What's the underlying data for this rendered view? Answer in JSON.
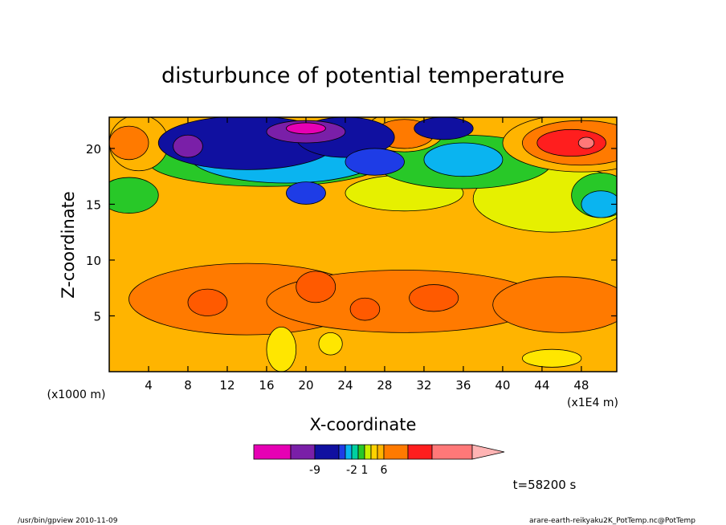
{
  "chart_data": {
    "type": "heatmap",
    "title": "disturbunce of potential temperature",
    "xlabel": "X-coordinate",
    "ylabel": "Z-coordinate",
    "x_unit_label": "(x1E4 m)",
    "y_unit_label": "(x1000 m)",
    "xlim": [
      0,
      51.6
    ],
    "ylim": [
      0,
      22.8
    ],
    "x_ticks": [
      4,
      8,
      12,
      16,
      20,
      24,
      28,
      32,
      36,
      40,
      44,
      48
    ],
    "y_ticks": [
      5,
      10,
      15,
      20
    ],
    "time_label": "t=58200 s",
    "colorbar": {
      "colors": [
        "#e600b4",
        "#7a1fa8",
        "#1010a0",
        "#1e3ce6",
        "#0ab4f0",
        "#00d0a0",
        "#28c828",
        "#c8f000",
        "#ffd200",
        "#ffb400",
        "#ff7a00",
        "#ff1e1e",
        "#ff7878",
        "#ffb4b4"
      ],
      "labels": [
        {
          "value": -9,
          "text": "-9"
        },
        {
          "value": -2,
          "text": "-2"
        },
        {
          "value": 1,
          "text": "1"
        },
        {
          "value": 6,
          "text": "6"
        }
      ]
    },
    "regions": [
      {
        "level": 1,
        "color": "#ff7a00",
        "cx": 14,
        "cy": 6.5,
        "rx": 12,
        "ry": 3.2
      },
      {
        "level": 1,
        "color": "#ff7a00",
        "cx": 30,
        "cy": 6.3,
        "rx": 14,
        "ry": 2.8
      },
      {
        "level": 1,
        "color": "#ff7a00",
        "cx": 46,
        "cy": 6,
        "rx": 7,
        "ry": 2.5
      },
      {
        "level": 2,
        "color": "#ff5a00",
        "cx": 10,
        "cy": 6.2,
        "rx": 2,
        "ry": 1.2
      },
      {
        "level": 2,
        "color": "#ff5a00",
        "cx": 21,
        "cy": 7.6,
        "rx": 2,
        "ry": 1.4
      },
      {
        "level": 2,
        "color": "#ff5a00",
        "cx": 26,
        "cy": 5.6,
        "rx": 1.5,
        "ry": 1
      },
      {
        "level": 2,
        "color": "#ff5a00",
        "cx": 33,
        "cy": 6.6,
        "rx": 2.5,
        "ry": 1.2
      },
      {
        "level": 0,
        "color": "#ffe600",
        "cx": 17.5,
        "cy": 2,
        "rx": 1.5,
        "ry": 2
      },
      {
        "level": 0,
        "color": "#ffe600",
        "cx": 22.5,
        "cy": 2.5,
        "rx": 1.2,
        "ry": 1
      },
      {
        "level": 0,
        "color": "#ffe600",
        "cx": 45,
        "cy": 1.2,
        "rx": 3,
        "ry": 0.8
      },
      {
        "level": 0,
        "color": "#e6f000",
        "cx": 45,
        "cy": 15.5,
        "rx": 8,
        "ry": 3
      },
      {
        "level": 0,
        "color": "#e6f000",
        "cx": 30,
        "cy": 16,
        "rx": 6,
        "ry": 1.6
      },
      {
        "level": 0,
        "color": "#28c828",
        "cx": 16,
        "cy": 18.8,
        "rx": 12,
        "ry": 2.2
      },
      {
        "level": 0,
        "color": "#28c828",
        "cx": 36,
        "cy": 18.8,
        "rx": 9,
        "ry": 2.4
      },
      {
        "level": 0,
        "color": "#28c828",
        "cx": 50,
        "cy": 15.8,
        "rx": 3,
        "ry": 2
      },
      {
        "level": 0,
        "color": "#28c828",
        "cx": 2,
        "cy": 15.8,
        "rx": 3,
        "ry": 1.6
      },
      {
        "level": 0,
        "color": "#ffb400",
        "cx": 3,
        "cy": 20.5,
        "rx": 3,
        "ry": 2.5
      },
      {
        "level": 1,
        "color": "#ff7a00",
        "cx": 2,
        "cy": 20.5,
        "rx": 2,
        "ry": 1.5
      },
      {
        "level": 0,
        "color": "#ffb400",
        "cx": 48,
        "cy": 20.5,
        "rx": 8,
        "ry": 2.6
      },
      {
        "level": 1,
        "color": "#ff7a00",
        "cx": 48,
        "cy": 20.5,
        "rx": 6,
        "ry": 2
      },
      {
        "level": 2,
        "color": "#ff1e1e",
        "cx": 47,
        "cy": 20.5,
        "rx": 3.5,
        "ry": 1.2
      },
      {
        "level": 3,
        "color": "#ff7878",
        "cx": 48.5,
        "cy": 20.5,
        "rx": 0.8,
        "ry": 0.5
      },
      {
        "level": 0,
        "color": "#ffb400",
        "cx": 30,
        "cy": 21.5,
        "rx": 4,
        "ry": 1.8
      },
      {
        "level": 1,
        "color": "#ff7a00",
        "cx": 30,
        "cy": 21.3,
        "rx": 3,
        "ry": 1.3
      },
      {
        "level": 0,
        "color": "#0ab4f0",
        "cx": 18,
        "cy": 19.5,
        "rx": 10,
        "ry": 2.6
      },
      {
        "level": 0,
        "color": "#0ab4f0",
        "cx": 50,
        "cy": 15,
        "rx": 2,
        "ry": 1.2
      },
      {
        "level": 0,
        "color": "#0ab4f0",
        "cx": 36,
        "cy": 19,
        "rx": 4,
        "ry": 1.5
      },
      {
        "level": 1,
        "color": "#1010a0",
        "cx": 14,
        "cy": 20.5,
        "rx": 9,
        "ry": 2.4
      },
      {
        "level": 1,
        "color": "#1010a0",
        "cx": 24,
        "cy": 21,
        "rx": 5,
        "ry": 1.8
      },
      {
        "level": 1,
        "color": "#1010a0",
        "cx": 34,
        "cy": 21.8,
        "rx": 3,
        "ry": 1
      },
      {
        "level": 1,
        "color": "#1e3ce6",
        "cx": 20,
        "cy": 16,
        "rx": 2,
        "ry": 1
      },
      {
        "level": 1,
        "color": "#1e3ce6",
        "cx": 27,
        "cy": 18.8,
        "rx": 3,
        "ry": 1.2
      },
      {
        "level": 2,
        "color": "#7a1fa8",
        "cx": 8,
        "cy": 20.2,
        "rx": 1.5,
        "ry": 1
      },
      {
        "level": 2,
        "color": "#7a1fa8",
        "cx": 20,
        "cy": 21.5,
        "rx": 4,
        "ry": 1
      },
      {
        "level": 3,
        "color": "#e600b4",
        "cx": 20,
        "cy": 21.8,
        "rx": 2,
        "ry": 0.5
      }
    ]
  },
  "footer": {
    "left": "/usr/bin/gpview  2010-11-09",
    "right": "arare-earth-reikyaku2K_PotTemp.nc@PotTemp"
  }
}
